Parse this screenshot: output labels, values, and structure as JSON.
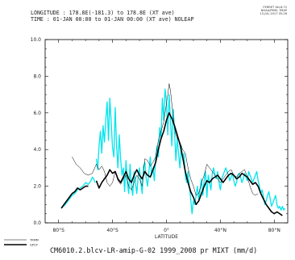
{
  "header": {
    "line1": "LONGITUDE : 178.8E(-181.3) to 178.8E (XT ave)",
    "line2": "TIME : 01-JAN 00:00 to 01-JAN 00:00 (XT ave) NOLEAP"
  },
  "stamp": {
    "line1": "FERRET Ver.6.72",
    "line2": "NOAA/PMEL TMAP",
    "line3": "13-JUL-2017 05:26"
  },
  "footer": "CM6010.2.blcv-LR-amip-G-02 1999_2008 pr MIXT (mm/d)",
  "colors": {
    "trmm": "#000000",
    "gpcp": "#000000",
    "model": "#00e5ee"
  },
  "chart_data": {
    "type": "line",
    "title": "CM6010.2.blcv-LR-amip-G-02 1999_2008 pr MIXT (mm/d)",
    "xlabel": "LATITUDE",
    "ylabel": "",
    "xlim": [
      -90,
      90
    ],
    "ylim": [
      0,
      10
    ],
    "x_ticks": [
      -80,
      -40,
      0,
      40,
      80
    ],
    "x_tick_labels": [
      "80°S",
      "40°S",
      "0°",
      "40°N",
      "80°N"
    ],
    "y_ticks": [
      0,
      2,
      4,
      6,
      8,
      10
    ],
    "y_tick_labels": [
      "0.0",
      "2.0",
      "4.0",
      "6.0",
      "8.0",
      "10.0"
    ],
    "grid": false,
    "legend": "bottom-left",
    "series": [
      {
        "name": "TRMM",
        "style": "thin-black",
        "segments": [
          {
            "x": [
              -70,
              -67,
              -64,
              -61,
              -58,
              -55,
              -52,
              -50,
              -48,
              -46,
              -44,
              -42,
              -40,
              -38,
              -36,
              -34,
              -32,
              -30,
              -28,
              -26,
              -24,
              -22,
              -20,
              -18,
              -16,
              -14,
              -12,
              -10,
              -8,
              -6,
              -4,
              -2,
              0,
              1,
              2,
              3,
              4,
              5,
              6,
              7,
              8,
              10,
              12,
              14,
              16,
              18,
              20,
              22,
              24,
              26,
              28,
              30,
              32,
              34,
              36,
              38,
              40,
              42,
              44,
              46,
              48,
              50,
              52,
              54,
              56,
              58,
              60,
              62,
              64,
              66,
              68
            ],
            "y": [
              3.6,
              3.2,
              3.0,
              2.7,
              2.6,
              2.7,
              3.2,
              2.9,
              3.1,
              2.8,
              2.2,
              2.0,
              2.2,
              2.8,
              2.3,
              2.1,
              2.4,
              2.6,
              2.0,
              1.8,
              2.2,
              2.6,
              2.4,
              2.0,
              3.5,
              3.4,
              3.1,
              3.3,
              3.6,
              4.5,
              5.0,
              5.5,
              6.5,
              7.0,
              7.6,
              7.2,
              6.5,
              5.8,
              5.2,
              4.8,
              4.6,
              4.4,
              4.0,
              3.8,
              3.0,
              2.4,
              2.0,
              1.5,
              1.6,
              2.2,
              2.6,
              3.2,
              3.0,
              2.8,
              2.6,
              2.4,
              2.2,
              2.4,
              2.6,
              2.8,
              2.9,
              2.6,
              2.5,
              2.7,
              2.8,
              2.9,
              2.5,
              2.0,
              1.6,
              1.5,
              1.6
            ]
          }
        ]
      },
      {
        "name": "GPCP",
        "style": "thick-black",
        "segments": [
          {
            "x": [
              -78,
              -75,
              -72,
              -70,
              -68,
              -66,
              -64,
              -62,
              -60,
              -58
            ],
            "y": [
              0.8,
              1.1,
              1.4,
              1.6,
              1.7,
              1.9,
              1.8,
              1.9,
              2.0,
              2.0
            ]
          },
          {
            "x": [
              -52,
              -50,
              -48,
              -46,
              -44,
              -42,
              -40,
              -38,
              -36,
              -34,
              -32,
              -30,
              -28,
              -26,
              -24,
              -22,
              -20,
              -18,
              -16,
              -14,
              -12,
              -10,
              -8,
              -6,
              -4,
              -2,
              0,
              2,
              4,
              6,
              8,
              10,
              12,
              14,
              16,
              18,
              20,
              22,
              24,
              26,
              28,
              30,
              32,
              34,
              36,
              38,
              40,
              42,
              44,
              46,
              48,
              50,
              52,
              54,
              56,
              58,
              60,
              62,
              64,
              66,
              68,
              70,
              72,
              74,
              76,
              78,
              80,
              82,
              84,
              86
            ],
            "y": [
              2.3,
              1.9,
              2.2,
              2.4,
              2.6,
              2.9,
              2.7,
              2.8,
              2.4,
              2.2,
              2.5,
              2.8,
              2.4,
              2.2,
              2.6,
              2.9,
              2.6,
              2.4,
              2.8,
              2.6,
              2.5,
              2.9,
              3.3,
              4.0,
              4.6,
              5.0,
              5.6,
              6.0,
              5.7,
              5.3,
              4.8,
              4.3,
              3.6,
              2.8,
              2.2,
              1.7,
              1.4,
              1.0,
              1.2,
              1.6,
              2.0,
              2.3,
              2.2,
              2.4,
              2.5,
              2.6,
              2.4,
              2.2,
              2.4,
              2.6,
              2.7,
              2.6,
              2.4,
              2.5,
              2.7,
              2.6,
              2.5,
              2.3,
              2.1,
              2.2,
              2.0,
              1.6,
              1.3,
              1.0,
              0.8,
              0.6,
              0.5,
              0.6,
              0.5,
              0.4
            ]
          }
        ]
      },
      {
        "name": "",
        "style": "cyan",
        "segments": [
          {
            "x": [
              -78,
              -75,
              -72,
              -70,
              -68,
              -66,
              -64,
              -62,
              -60,
              -58,
              -56,
              -55,
              -54,
              -53
            ],
            "y": [
              0.8,
              1.0,
              1.3,
              1.5,
              1.6,
              1.8,
              1.9,
              2.0,
              2.2,
              2.1,
              2.3,
              2.5,
              2.4,
              2.2
            ]
          },
          {
            "x": [
              -52,
              -51,
              -50,
              -49,
              -48,
              -47,
              -46,
              -45,
              -44,
              -43,
              -42,
              -41,
              -40,
              -39,
              -38,
              -37,
              -36,
              -35,
              -34,
              -33,
              -32,
              -31,
              -30,
              -29,
              -28,
              -27,
              -26,
              -25,
              -24,
              -23,
              -22,
              -21,
              -20,
              -19,
              -18,
              -17,
              -16,
              -15,
              -14,
              -13,
              -12,
              -11,
              -10,
              -9,
              -8,
              -7,
              -6,
              -5,
              -4,
              -3,
              -2,
              -1,
              0,
              1,
              2,
              3,
              4,
              5,
              6,
              7,
              8,
              9,
              10,
              11,
              12,
              13,
              14,
              15,
              16,
              17,
              18,
              19,
              20,
              21,
              22,
              23,
              24,
              25,
              26,
              27,
              28,
              29,
              30,
              31,
              32,
              33,
              34,
              35,
              36,
              37,
              38,
              39,
              40,
              41,
              42,
              43,
              44,
              45,
              46,
              47,
              48,
              49,
              50,
              51,
              52,
              53,
              54,
              55,
              56,
              57,
              58,
              59,
              60,
              61,
              62,
              63,
              64,
              65,
              66,
              67,
              68,
              69,
              70,
              71,
              72,
              73,
              74,
              75,
              76,
              77,
              78,
              79,
              80,
              81,
              82,
              83,
              84,
              85,
              86,
              87,
              88
            ],
            "y": [
              3.5,
              2.9,
              4.2,
              5.0,
              3.8,
              5.3,
              4.4,
              5.6,
              6.6,
              4.5,
              6.8,
              5.5,
              4.1,
              3.6,
              6.3,
              4.2,
              3.0,
              4.8,
              3.5,
              2.6,
              3.0,
              1.7,
              3.4,
              2.2,
              1.6,
              3.2,
              2.0,
              1.5,
              2.8,
              2.2,
              1.6,
              2.5,
              3.0,
              2.2,
              1.6,
              3.1,
              3.3,
              2.4,
              2.0,
              2.8,
              3.6,
              2.6,
              3.0,
              2.3,
              3.5,
              4.2,
              3.6,
              5.2,
              4.6,
              6.8,
              5.6,
              7.3,
              6.6,
              4.8,
              7.0,
              5.5,
              4.2,
              6.2,
              5.0,
              3.4,
              4.6,
              3.8,
              3.0,
              4.2,
              3.5,
              3.8,
              2.6,
              2.2,
              2.8,
              2.0,
              1.3,
              0.5,
              1.2,
              1.0,
              1.5,
              2.0,
              1.2,
              1.8,
              2.4,
              1.5,
              2.3,
              2.8,
              1.4,
              2.6,
              2.2,
              1.8,
              2.7,
              3.0,
              2.6,
              2.4,
              2.8,
              2.2,
              1.8,
              2.4,
              2.6,
              2.8,
              3.0,
              2.8,
              2.6,
              2.3,
              2.5,
              2.7,
              2.3,
              2.0,
              2.2,
              2.6,
              2.7,
              2.5,
              2.2,
              2.4,
              2.7,
              2.5,
              2.3,
              2.8,
              2.6,
              2.4,
              2.2,
              2.4,
              2.6,
              2.8,
              2.3,
              2.0,
              1.6,
              1.8,
              1.4,
              1.0,
              1.2,
              1.5,
              1.7,
              1.3,
              0.9,
              1.1,
              1.3,
              1.5,
              1.0,
              0.8,
              0.9,
              0.7,
              0.9,
              0.7,
              0.8
            ]
          }
        ]
      }
    ]
  },
  "legend": [
    {
      "label": "TRMM",
      "style": "thin-black"
    },
    {
      "label": "GPCP",
      "style": "thick-black"
    }
  ]
}
